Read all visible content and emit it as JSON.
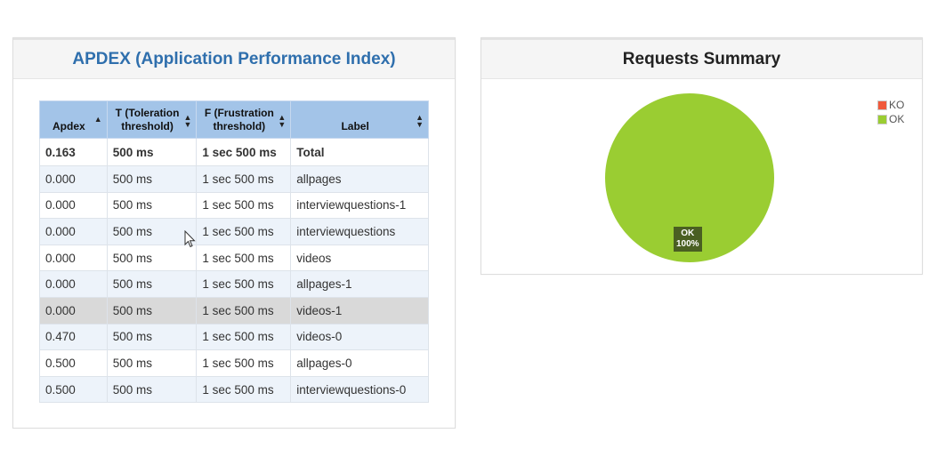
{
  "apdex": {
    "title": "APDEX (Application Performance Index)",
    "headers": {
      "apdex": "Apdex",
      "toleration": [
        "T (Toleration",
        "threshold)"
      ],
      "frustration": [
        "F (Frustration",
        "threshold)"
      ],
      "label": "Label"
    },
    "sort_icons": {
      "apdex": "▲",
      "other": "▲▼"
    },
    "total": {
      "apdex": "0.163",
      "t": "500 ms",
      "f": "1 sec 500 ms",
      "label": "Total"
    },
    "rows": [
      {
        "apdex": "0.000",
        "t": "500 ms",
        "f": "1 sec 500 ms",
        "label": "allpages"
      },
      {
        "apdex": "0.000",
        "t": "500 ms",
        "f": "1 sec 500 ms",
        "label": "interviewquestions-1"
      },
      {
        "apdex": "0.000",
        "t": "500 ms",
        "f": "1 sec 500 ms",
        "label": "interviewquestions"
      },
      {
        "apdex": "0.000",
        "t": "500 ms",
        "f": "1 sec 500 ms",
        "label": "videos"
      },
      {
        "apdex": "0.000",
        "t": "500 ms",
        "f": "1 sec 500 ms",
        "label": "allpages-1"
      },
      {
        "apdex": "0.000",
        "t": "500 ms",
        "f": "1 sec 500 ms",
        "label": "videos-1"
      },
      {
        "apdex": "0.470",
        "t": "500 ms",
        "f": "1 sec 500 ms",
        "label": "videos-0"
      },
      {
        "apdex": "0.500",
        "t": "500 ms",
        "f": "1 sec 500 ms",
        "label": "allpages-0"
      },
      {
        "apdex": "0.500",
        "t": "500 ms",
        "f": "1 sec 500 ms",
        "label": "interviewquestions-0"
      }
    ],
    "hovered_row": "videos-1"
  },
  "summary": {
    "title": "Requests Summary",
    "legend": [
      {
        "name": "KO",
        "color": "#f05a3c"
      },
      {
        "name": "OK",
        "color": "#9acd32"
      }
    ],
    "slice_label": "OK",
    "slice_percent": "100%"
  },
  "chart_data": {
    "type": "pie",
    "title": "Requests Summary",
    "categories": [
      "KO",
      "OK"
    ],
    "values": [
      0,
      100
    ],
    "colors": [
      "#f05a3c",
      "#9acd32"
    ],
    "legend_position": "top-right"
  }
}
